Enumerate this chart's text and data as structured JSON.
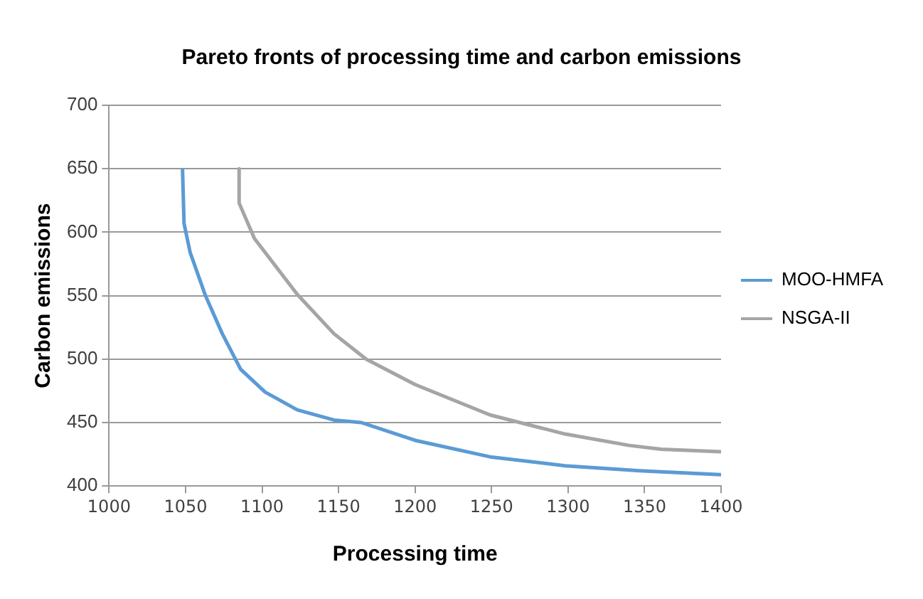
{
  "chart_data": {
    "type": "line",
    "title": "Pareto fronts of processing time and carbon emissions",
    "xlabel": "Processing time",
    "ylabel": "Carbon emissions",
    "series": [
      {
        "name": "MOO-HMFA",
        "color": "#5b9bd5",
        "x": [
          1048,
          1049,
          1053,
          1063,
          1074,
          1086,
          1102,
          1123,
          1147,
          1165,
          1200,
          1249,
          1298,
          1347,
          1400
        ],
        "values": [
          650,
          607,
          584,
          550,
          520,
          492,
          474,
          460,
          452,
          450,
          436,
          423,
          416,
          412,
          409
        ]
      },
      {
        "name": "NSGA-II",
        "color": "#a5a5a5",
        "x": [
          1085,
          1085,
          1095,
          1123,
          1147,
          1168,
          1200,
          1249,
          1298,
          1340,
          1361,
          1400
        ],
        "values": [
          650,
          623,
          595,
          551,
          520,
          500,
          480,
          456,
          441,
          432,
          429,
          427
        ]
      }
    ],
    "xlim": [
      1000,
      1400
    ],
    "xticks": [
      1000,
      1050,
      1100,
      1150,
      1200,
      1250,
      1300,
      1350,
      1400
    ],
    "ylim": [
      400,
      700
    ],
    "yticks": [
      400,
      450,
      500,
      550,
      600,
      650,
      700
    ],
    "grid": "y",
    "legend": "right",
    "marker": "none",
    "line_style": "solid"
  }
}
